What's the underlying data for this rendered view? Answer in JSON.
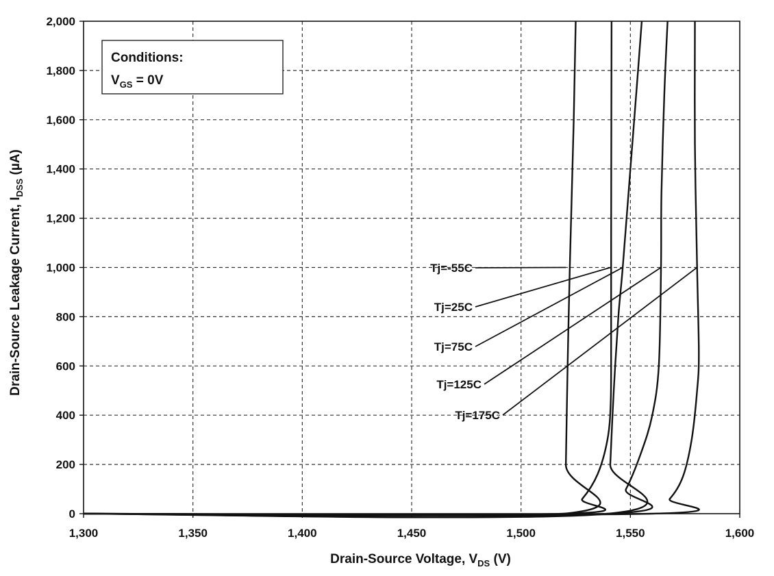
{
  "chart_data": {
    "type": "line",
    "xlabel": {
      "prefix": "Drain-Source Voltage, V",
      "sub": "DS",
      "suffix": " (V)"
    },
    "ylabel": {
      "prefix": "Drain-Source Leakage Current, I",
      "sub": "DSS",
      "suffix": " (µA)"
    },
    "xlim": [
      1300,
      1600
    ],
    "ylim": [
      0,
      2000
    ],
    "x_ticks": [
      1300,
      1350,
      1400,
      1450,
      1500,
      1550,
      1600
    ],
    "y_ticks": [
      0,
      200,
      400,
      600,
      800,
      1000,
      1200,
      1400,
      1600,
      1800,
      2000
    ],
    "x_tick_labels": [
      "1,300",
      "1,350",
      "1,400",
      "1,450",
      "1,500",
      "1,550",
      "1,600"
    ],
    "y_tick_labels": [
      "0",
      "200",
      "400",
      "600",
      "800",
      "1,000",
      "1,200",
      "1,400",
      "1,600",
      "1,800",
      "2,000"
    ],
    "grid": true,
    "conditions": {
      "line1": "Conditions:",
      "v": "V",
      "sub": "GS",
      "rest": " = 0V"
    },
    "series": [
      {
        "name": "Tj=-55C",
        "label_anchor": [
          1520.5,
          1000
        ],
        "points": [
          [
            1300,
            0
          ],
          [
            1519.8,
            0
          ],
          [
            1520.5,
            200
          ],
          [
            1521.3,
            600
          ],
          [
            1522.3,
            1000
          ],
          [
            1524.1,
            1600
          ],
          [
            1525,
            2000
          ]
        ]
      },
      {
        "name": "Tj=25C",
        "label_anchor": [
          1541,
          1000
        ],
        "points": [
          [
            1300,
            0
          ],
          [
            1520,
            0
          ],
          [
            1528,
            60
          ],
          [
            1535,
            160
          ],
          [
            1539.5,
            300
          ],
          [
            1541,
            450
          ],
          [
            1541.2,
            700
          ],
          [
            1541.2,
            1100
          ],
          [
            1541.3,
            1600
          ],
          [
            1541.4,
            2000
          ]
        ]
      },
      {
        "name": "Tj=75C",
        "label_anchor": [
          1546.5,
          1000
        ],
        "points": [
          [
            1300,
            0
          ],
          [
            1539.8,
            0
          ],
          [
            1540.8,
            200
          ],
          [
            1542.4,
            500
          ],
          [
            1544.5,
            800
          ],
          [
            1546.5,
            1000
          ],
          [
            1550,
            1400
          ],
          [
            1553.5,
            1800
          ],
          [
            1555.2,
            2000
          ]
        ]
      },
      {
        "name": "Tj=125C",
        "label_anchor": [
          1564,
          1000
        ],
        "points": [
          [
            1300,
            0
          ],
          [
            1540,
            0
          ],
          [
            1548,
            100
          ],
          [
            1555,
            250
          ],
          [
            1560,
            400
          ],
          [
            1563,
            600
          ],
          [
            1564,
            1000
          ],
          [
            1564.2,
            1300
          ],
          [
            1565.5,
            1700
          ],
          [
            1567,
            2000
          ]
        ]
      },
      {
        "name": "Tj=175C",
        "label_anchor": [
          1580.5,
          1000
        ],
        "points": [
          [
            1300,
            0
          ],
          [
            1559.8,
            0
          ],
          [
            1568,
            60
          ],
          [
            1574,
            150
          ],
          [
            1578,
            300
          ],
          [
            1580.5,
            500
          ],
          [
            1581.3,
            650
          ],
          [
            1580.5,
            1000
          ],
          [
            1579.5,
            1500
          ],
          [
            1579.5,
            2000
          ]
        ]
      }
    ]
  }
}
